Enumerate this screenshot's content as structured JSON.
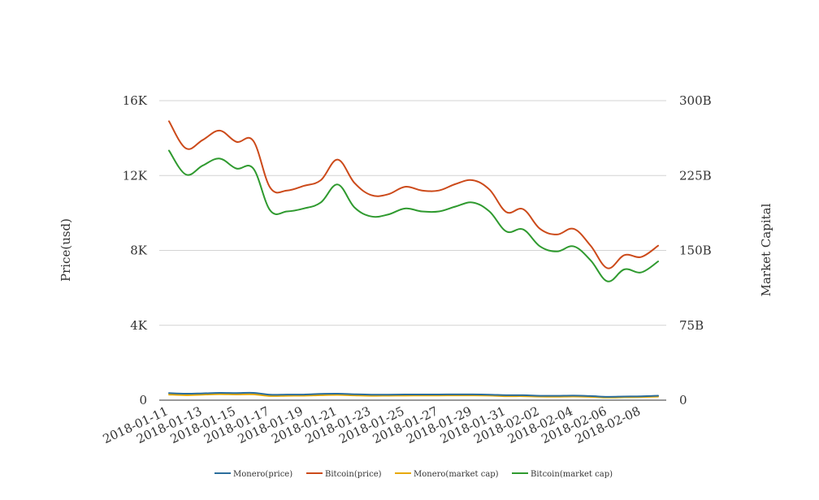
{
  "chart_data": {
    "type": "line",
    "title": "",
    "ylabel_left": "Price(usd)",
    "ylabel_right": "Market Capital",
    "ylim_left": [
      0,
      16000
    ],
    "ylim_right": [
      0,
      300000000000
    ],
    "left_ticks": [
      {
        "value": 0,
        "label": "0"
      },
      {
        "value": 4000,
        "label": "4K"
      },
      {
        "value": 8000,
        "label": "8K"
      },
      {
        "value": 12000,
        "label": "12K"
      },
      {
        "value": 16000,
        "label": "16K"
      }
    ],
    "right_ticks": [
      {
        "value": 0,
        "label": "0"
      },
      {
        "value": 75000000000,
        "label": "75B"
      },
      {
        "value": 150000000000,
        "label": "150B"
      },
      {
        "value": 225000000000,
        "label": "225B"
      },
      {
        "value": 300000000000,
        "label": "300B"
      }
    ],
    "x": [
      "2018-01-11",
      "2018-01-12",
      "2018-01-13",
      "2018-01-14",
      "2018-01-15",
      "2018-01-16",
      "2018-01-17",
      "2018-01-18",
      "2018-01-19",
      "2018-01-20",
      "2018-01-21",
      "2018-01-22",
      "2018-01-23",
      "2018-01-24",
      "2018-01-25",
      "2018-01-26",
      "2018-01-27",
      "2018-01-28",
      "2018-01-29",
      "2018-01-30",
      "2018-01-31",
      "2018-02-01",
      "2018-02-02",
      "2018-02-03",
      "2018-02-04",
      "2018-02-05",
      "2018-02-06",
      "2018-02-07",
      "2018-02-08",
      "2018-02-09"
    ],
    "x_tick_labels": [
      "2018-01-11",
      "2018-01-13",
      "2018-01-15",
      "2018-01-17",
      "2018-01-19",
      "2018-01-21",
      "2018-01-23",
      "2018-01-25",
      "2018-01-27",
      "2018-01-29",
      "2018-01-31",
      "2018-02-02",
      "2018-02-04",
      "2018-02-06",
      "2018-02-08"
    ],
    "grid": true,
    "legend_position": "bottom-center",
    "series": [
      {
        "name": "Monero(price)",
        "axis": "left",
        "color": "#2c6e9c",
        "values": [
          380,
          345,
          365,
          390,
          380,
          390,
          295,
          300,
          300,
          335,
          345,
          315,
          295,
          295,
          305,
          305,
          305,
          310,
          310,
          295,
          265,
          265,
          235,
          235,
          245,
          220,
          180,
          195,
          205,
          240
        ]
      },
      {
        "name": "Bitcoin(price)",
        "axis": "left",
        "color": "#cc4a1a",
        "values": [
          14900,
          13450,
          13900,
          14400,
          13800,
          13850,
          11350,
          11200,
          11450,
          11750,
          12850,
          11600,
          10950,
          11000,
          11400,
          11200,
          11200,
          11550,
          11750,
          11250,
          10050,
          10200,
          9150,
          8850,
          9150,
          8250,
          7050,
          7750,
          7650,
          8250
        ]
      },
      {
        "name": "Monero(market cap)",
        "axis": "right",
        "color": "#e8a800",
        "values": [
          5600000000,
          5000000000,
          5500000000,
          6000000000,
          5700000000,
          5800000000,
          4200000000,
          4400000000,
          4500000000,
          5000000000,
          5300000000,
          4800000000,
          4400000000,
          4500000000,
          4600000000,
          4700000000,
          4700000000,
          4800000000,
          4800000000,
          4600000000,
          4000000000,
          4000000000,
          3600000000,
          3500000000,
          3700000000,
          3300000000,
          2600000000,
          2900000000,
          3100000000,
          3600000000
        ]
      },
      {
        "name": "Bitcoin(market cap)",
        "axis": "right",
        "color": "#2f9a2f",
        "values": [
          250000000000,
          226000000000,
          235000000000,
          242000000000,
          232000000000,
          232000000000,
          190000000000,
          189000000000,
          192000000000,
          198000000000,
          216000000000,
          193000000000,
          184000000000,
          186000000000,
          192000000000,
          189000000000,
          189000000000,
          194000000000,
          198000000000,
          189000000000,
          169000000000,
          171000000000,
          154000000000,
          149000000000,
          154000000000,
          140000000000,
          119000000000,
          131000000000,
          128000000000,
          139000000000
        ]
      }
    ]
  }
}
